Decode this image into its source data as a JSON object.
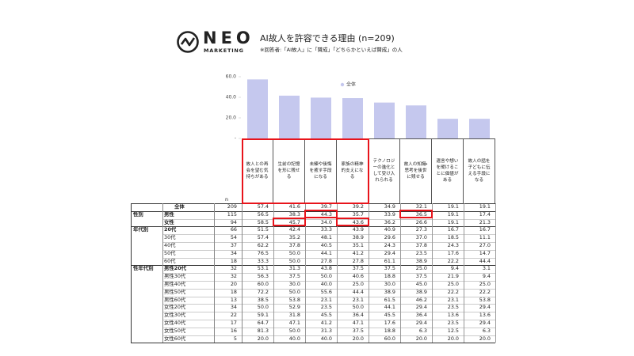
{
  "header": {
    "logo": "NEO",
    "logo_sub": "MARKETING",
    "title": "AI故人を許容できる理由 (n=209)",
    "note": "※回答者:「AI故人」に「賛成」「どちらかといえば賛成」の人"
  },
  "chart_data": {
    "type": "bar",
    "categories": [
      "故人との再会を望む気持ちがある",
      "生前の記憶を形に残せる",
      "未練や後悔を癒す手段になる",
      "家族の精神的支えになる",
      "テクノロジーの進化として受け入れられる",
      "故人の知識・思考を後世に残せる",
      "遺言や想いを聞けることに価値がある",
      "故人の話を子どもに伝える手段になる"
    ],
    "series": [
      {
        "name": "全体",
        "color": "#c5c8ee",
        "values": [
          57.4,
          41.6,
          39.7,
          39.2,
          34.9,
          32.1,
          19.1,
          19.1
        ]
      }
    ],
    "ylim": [
      0,
      60
    ],
    "yticks": [
      {
        "value": 0,
        "label": "-"
      },
      {
        "value": 20,
        "label": "20.0"
      },
      {
        "value": 40,
        "label": "40.0"
      },
      {
        "value": 60,
        "label": "60.0"
      }
    ],
    "grid": false,
    "legend": "top-right"
  },
  "table": {
    "n_label": "n",
    "rows": [
      {
        "label": "全体",
        "n": 209,
        "values": [
          "57.4",
          "41.6",
          "39.7",
          "39.2",
          "34.9",
          "32.1",
          "19.1",
          "19.1"
        ]
      },
      {
        "group": "性別",
        "label": "男性",
        "n": 115,
        "values": [
          "56.5",
          "38.3",
          "44.3",
          "35.7",
          "33.9",
          "36.5",
          "19.1",
          "17.4"
        ]
      },
      {
        "label": "女性",
        "n": 94,
        "values": [
          "58.5",
          "45.7",
          "34.0",
          "43.6",
          "36.2",
          "26.6",
          "19.1",
          "21.3"
        ]
      },
      {
        "group": "年代別",
        "label": "20代",
        "n": 66,
        "values": [
          "51.5",
          "42.4",
          "33.3",
          "43.9",
          "40.9",
          "27.3",
          "16.7",
          "16.7"
        ]
      },
      {
        "label": "30代",
        "n": 54,
        "values": [
          "57.4",
          "35.2",
          "48.1",
          "38.9",
          "29.6",
          "37.0",
          "18.5",
          "11.1"
        ]
      },
      {
        "label": "40代",
        "n": 37,
        "values": [
          "62.2",
          "37.8",
          "40.5",
          "35.1",
          "24.3",
          "37.8",
          "24.3",
          "27.0"
        ]
      },
      {
        "label": "50代",
        "n": 34,
        "values": [
          "76.5",
          "50.0",
          "44.1",
          "41.2",
          "29.4",
          "23.5",
          "17.6",
          "14.7"
        ]
      },
      {
        "label": "60代",
        "n": 18,
        "values": [
          "33.3",
          "50.0",
          "27.8",
          "27.8",
          "61.1",
          "38.9",
          "22.2",
          "44.4"
        ]
      },
      {
        "group": "性年代別",
        "label": "男性20代",
        "n": 32,
        "values": [
          "53.1",
          "31.3",
          "43.8",
          "37.5",
          "37.5",
          "25.0",
          "9.4",
          "3.1"
        ]
      },
      {
        "label": "男性30代",
        "n": 32,
        "values": [
          "56.3",
          "37.5",
          "50.0",
          "40.6",
          "18.8",
          "37.5",
          "21.9",
          "9.4"
        ]
      },
      {
        "label": "男性40代",
        "n": 20,
        "values": [
          "60.0",
          "30.0",
          "40.0",
          "25.0",
          "30.0",
          "45.0",
          "25.0",
          "25.0"
        ]
      },
      {
        "label": "男性50代",
        "n": 18,
        "values": [
          "72.2",
          "50.0",
          "55.6",
          "44.4",
          "38.9",
          "38.9",
          "22.2",
          "22.2"
        ]
      },
      {
        "label": "男性60代",
        "n": 13,
        "values": [
          "38.5",
          "53.8",
          "23.1",
          "23.1",
          "61.5",
          "46.2",
          "23.1",
          "53.8"
        ]
      },
      {
        "label": "女性20代",
        "n": 34,
        "values": [
          "50.0",
          "52.9",
          "23.5",
          "50.0",
          "44.1",
          "29.4",
          "23.5",
          "29.4"
        ]
      },
      {
        "label": "女性30代",
        "n": 22,
        "values": [
          "59.1",
          "31.8",
          "45.5",
          "36.4",
          "45.5",
          "36.4",
          "13.6",
          "13.6"
        ]
      },
      {
        "label": "女性40代",
        "n": 17,
        "values": [
          "64.7",
          "47.1",
          "41.2",
          "47.1",
          "17.6",
          "29.4",
          "23.5",
          "29.4"
        ]
      },
      {
        "label": "女性50代",
        "n": 16,
        "values": [
          "81.3",
          "50.0",
          "31.3",
          "37.5",
          "18.8",
          "6.3",
          "12.5",
          "6.3"
        ]
      },
      {
        "label": "女性60代",
        "n": 5,
        "values": [
          "20.0",
          "40.0",
          "40.0",
          "20.0",
          "60.0",
          "20.0",
          "20.0",
          "20.0"
        ]
      }
    ]
  }
}
